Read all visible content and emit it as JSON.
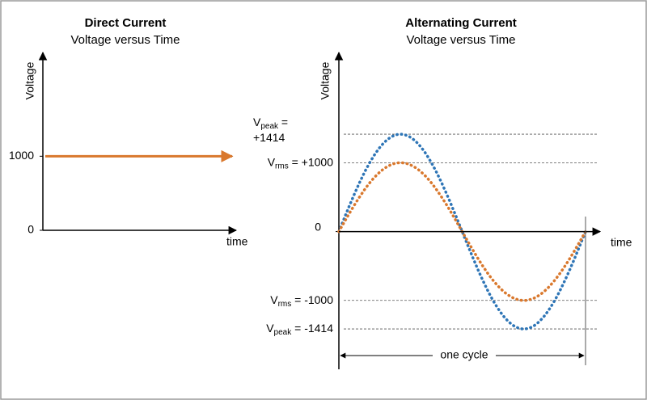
{
  "chart_data": [
    {
      "type": "dc",
      "title": "Direct Current",
      "subtitle": "Voltage versus Time",
      "y_label": "Voltage",
      "x_label": "time",
      "ylim": [
        0,
        2400
      ],
      "yticks": [
        0,
        1000
      ],
      "series": [
        {
          "color": "#d9782d",
          "values": [
            1000
          ]
        }
      ]
    },
    {
      "type": "ac",
      "title": "Alternating Current",
      "subtitle": "Voltage versus Time",
      "y_label": "Voltage",
      "x_label": "time",
      "ylim": [
        -2000,
        2600
      ],
      "yticks": [
        0
      ],
      "series": [
        {
          "color": "#2e75b6",
          "amplitude": 1414
        },
        {
          "color": "#d9782d",
          "amplitude": 1000
        }
      ],
      "levels": [
        {
          "value": 1414,
          "symbol": "V",
          "sub": "peak",
          "text": " =",
          "text2": "+1414"
        },
        {
          "value": 1000,
          "symbol": "V",
          "sub": "rms",
          "text": " = +1000"
        },
        {
          "value": -1000,
          "symbol": "V",
          "sub": "rms",
          "text": " = -1000"
        },
        {
          "value": -1414,
          "symbol": "V",
          "sub": "peak",
          "text": " = -1414"
        }
      ],
      "cycle_label": "one cycle"
    }
  ]
}
